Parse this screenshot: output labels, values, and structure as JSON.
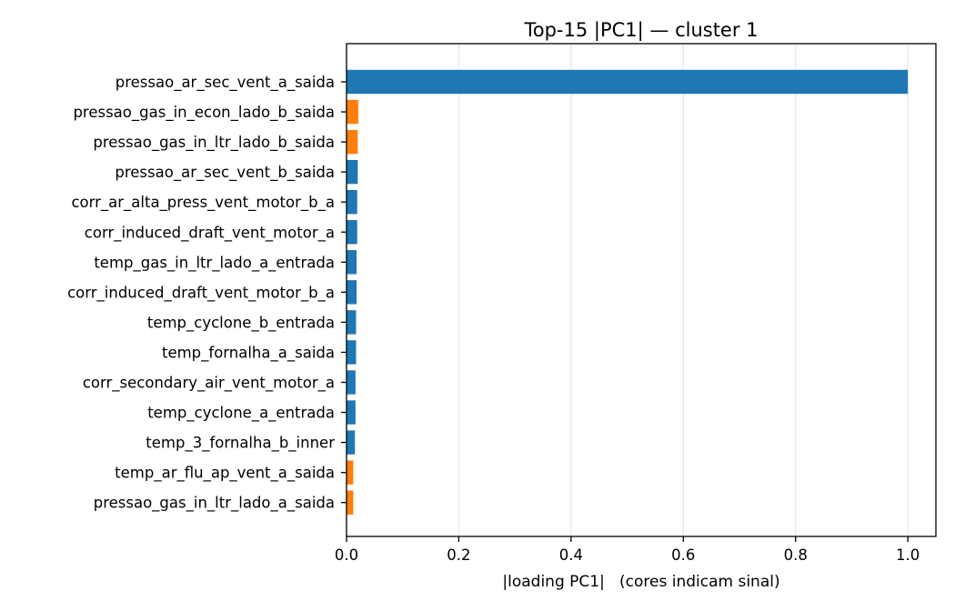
{
  "chart_data": {
    "type": "bar",
    "orientation": "horizontal",
    "title": "Top-15 |PC1| — cluster 1",
    "xlabel": "|loading PC1|   (cores indicam sinal)",
    "ylabel": "",
    "xlim": [
      0,
      1.05
    ],
    "xticks": [
      0.0,
      0.2,
      0.4,
      0.6,
      0.8,
      1.0
    ],
    "xtick_labels": [
      "0.0",
      "0.2",
      "0.4",
      "0.6",
      "0.8",
      "1.0"
    ],
    "grid": "vertical",
    "categories": [
      "pressao_ar_sec_vent_a_saida",
      "pressao_gas_in_econ_lado_b_saida",
      "pressao_gas_in_ltr_lado_b_saida",
      "pressao_ar_sec_vent_b_saida",
      "corr_ar_alta_press_vent_motor_b_a",
      "corr_induced_draft_vent_motor_a",
      "temp_gas_in_ltr_lado_a_entrada",
      "corr_induced_draft_vent_motor_b_a",
      "temp_cyclone_b_entrada",
      "temp_fornalha_a_saida",
      "corr_secondary_air_vent_motor_a",
      "temp_cyclone_a_entrada",
      "temp_3_fornalha_b_inner",
      "temp_ar_flu_ap_vent_a_saida",
      "pressao_gas_in_ltr_lado_a_saida"
    ],
    "values": [
      1.0,
      0.021,
      0.02,
      0.02,
      0.019,
      0.019,
      0.018,
      0.018,
      0.017,
      0.017,
      0.016,
      0.016,
      0.015,
      0.012,
      0.012
    ],
    "signs": [
      "positive",
      "negative",
      "negative",
      "positive",
      "positive",
      "positive",
      "positive",
      "positive",
      "positive",
      "positive",
      "positive",
      "positive",
      "positive",
      "negative",
      "negative"
    ],
    "colors": {
      "positive": "#1f77b4",
      "negative": "#ff7f0e"
    }
  }
}
